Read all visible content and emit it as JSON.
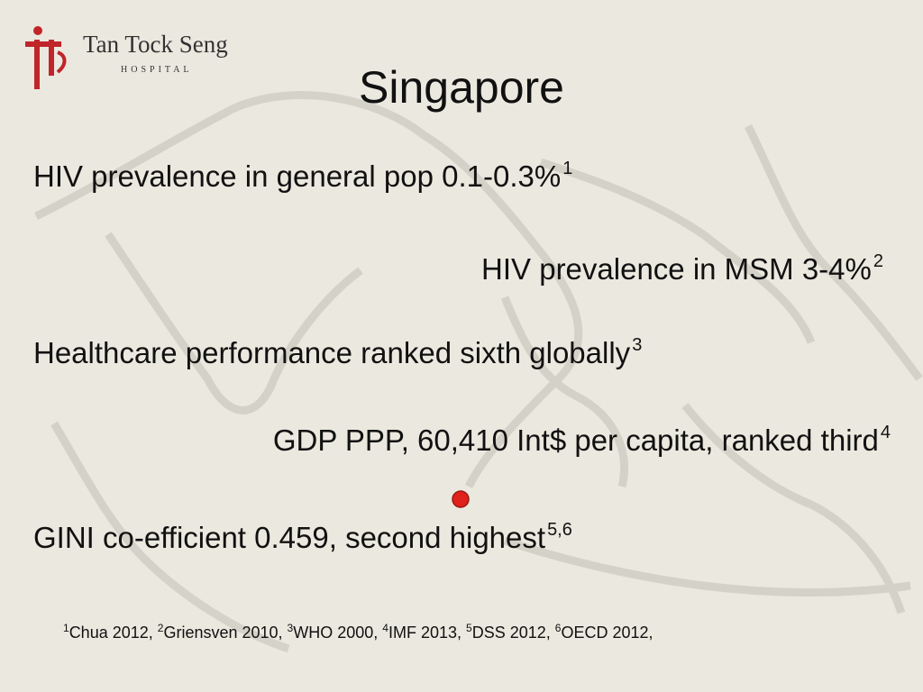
{
  "logo": {
    "name": "Tan Tock Seng",
    "subtitle": "HOSPITAL"
  },
  "title": "Singapore",
  "statements": [
    {
      "text": "HIV prevalence in general pop 0.1-0.3%",
      "sup": "1"
    },
    {
      "text": "HIV prevalence in MSM 3-4%",
      "sup": "2"
    },
    {
      "text": "Healthcare performance ranked sixth globally",
      "sup": "3"
    },
    {
      "text": "GDP PPP, 60,410 Int$ per capita, ranked third",
      "sup": "4"
    },
    {
      "text": "GINI co-efficient 0.459, second highest",
      "sup": "5,6"
    }
  ],
  "references": [
    {
      "sup": "1",
      "text": "Chua 2012,"
    },
    {
      "sup": "2",
      "text": "Griensven 2010,"
    },
    {
      "sup": "3",
      "text": "WHO 2000,"
    },
    {
      "sup": "4",
      "text": "IMF 2013,"
    },
    {
      "sup": "5",
      "text": "DSS 2012,"
    },
    {
      "sup": "6",
      "text": "OECD 2012,"
    }
  ]
}
